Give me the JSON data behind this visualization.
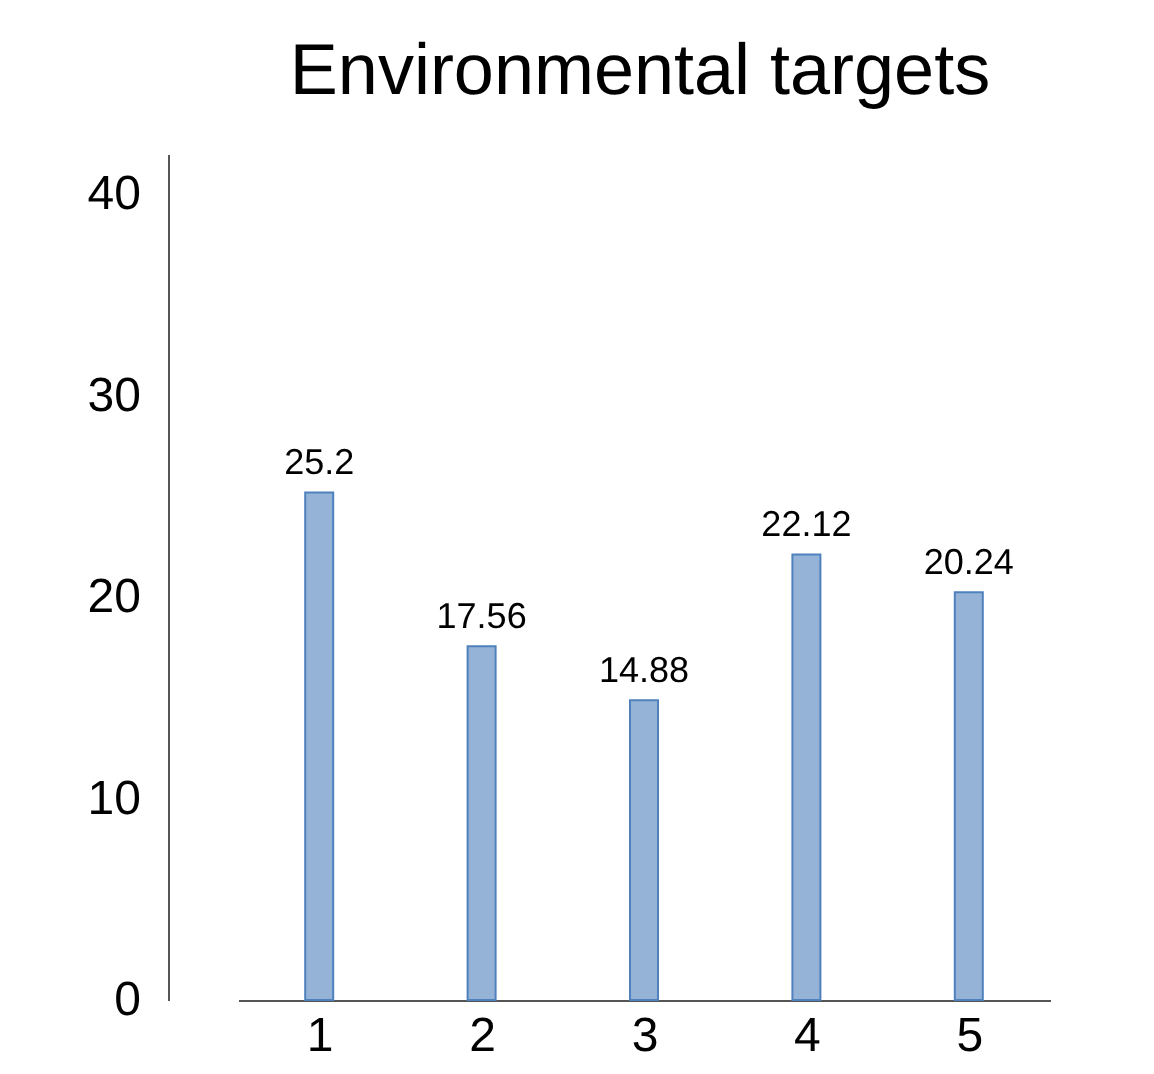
{
  "chart_data": {
    "type": "bar",
    "title": "Environmental targets",
    "categories": [
      "1",
      "2",
      "3",
      "4",
      "5"
    ],
    "values": [
      25.2,
      17.56,
      14.88,
      22.12,
      20.24
    ],
    "color": "#95b3d7",
    "ylim": [
      0,
      42
    ],
    "yticks": [
      0,
      10,
      20,
      30,
      40
    ],
    "data_labels": true,
    "grid": false
  }
}
